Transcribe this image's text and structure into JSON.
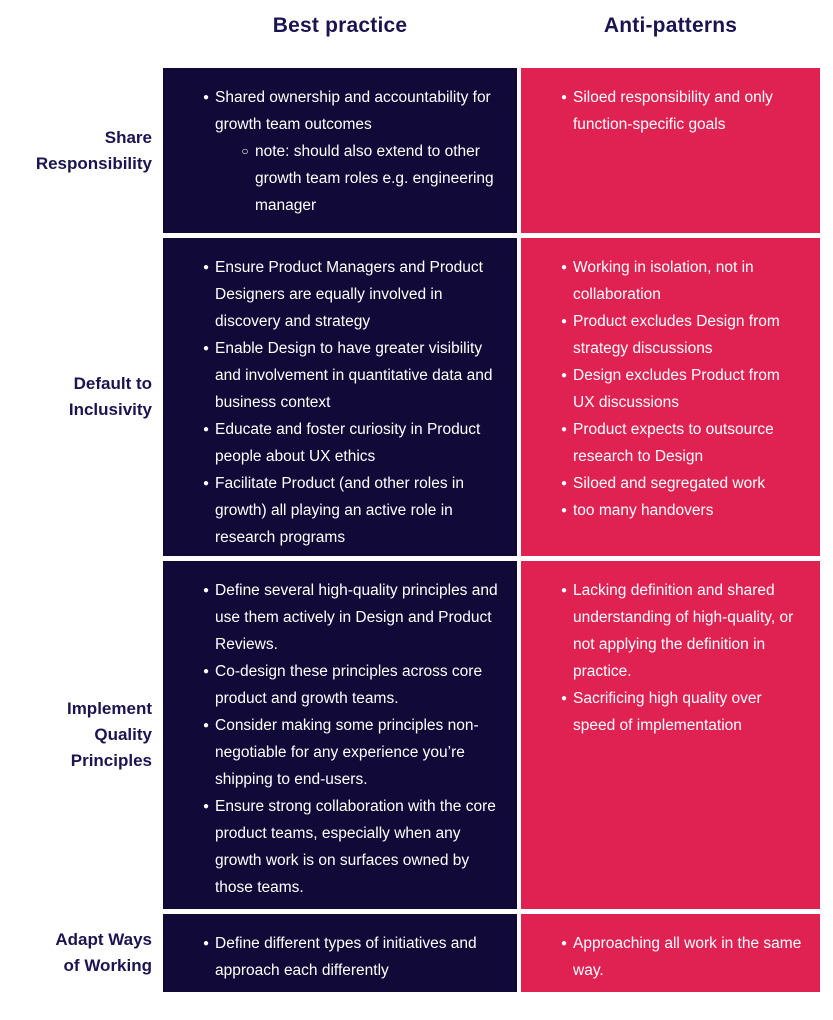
{
  "headers": {
    "best": "Best practice",
    "anti": "Anti-patterns"
  },
  "icons": {
    "bullet": "●",
    "sub_bullet": "○"
  },
  "colors": {
    "navy_cell": "#110a38",
    "pink_cell": "#e02253",
    "heading_text": "#1b1450",
    "cell_text": "#ffffff",
    "page_bg": "#ffffff"
  },
  "rows": [
    {
      "label": "Share\nResponsibility",
      "best": [
        {
          "text": "Shared ownership and accountability for growth team outcomes"
        },
        {
          "text": "note: should also extend to other growth team roles e.g. engineering manager"
        }
      ],
      "anti": [
        {
          "text": "Siloed responsibility and only function-specific goals"
        }
      ]
    },
    {
      "label": "Default to\nInclusivity",
      "best": [
        {
          "text": "Ensure Product Managers and Product Designers are equally involved in discovery and strategy"
        },
        {
          "text": "Enable Design to have greater visibility and involvement in quantitative data and business context"
        },
        {
          "text": "Educate and foster curiosity in Product people about UX ethics"
        },
        {
          "text": "Facilitate Product (and other roles in growth) all playing an active role in research programs"
        }
      ],
      "anti": [
        {
          "text": "Working in isolation, not in collaboration"
        },
        {
          "text": "Product excludes Design from strategy discussions"
        },
        {
          "text": "Design excludes Product from UX discussions"
        },
        {
          "text": "Product expects to outsource research to Design"
        },
        {
          "text": "Siloed and segregated work"
        },
        {
          "text": "too many handovers"
        }
      ]
    },
    {
      "label": "Implement\nQuality\nPrinciples",
      "best": [
        {
          "text": "Define several high-quality principles and use them actively in Design and Product Reviews."
        },
        {
          "text": "Co-design these principles across core product and growth teams."
        },
        {
          "text": "Consider making some principles non-negotiable for any experience you’re shipping to end-users."
        },
        {
          "text": "Ensure strong collaboration with the core product teams, especially when any growth work is on surfaces owned by those teams."
        }
      ],
      "anti": [
        {
          "text": "Lacking definition and shared understanding of high-quality, or not applying the definition in practice."
        },
        {
          "text": "Sacrificing high quality over speed of implementation"
        }
      ]
    },
    {
      "label": "Adapt Ways\nof Working",
      "best": [
        {
          "text": "Define different types of initiatives and approach each differently"
        }
      ],
      "anti": [
        {
          "text": "Approaching all work in the same way."
        }
      ]
    }
  ]
}
